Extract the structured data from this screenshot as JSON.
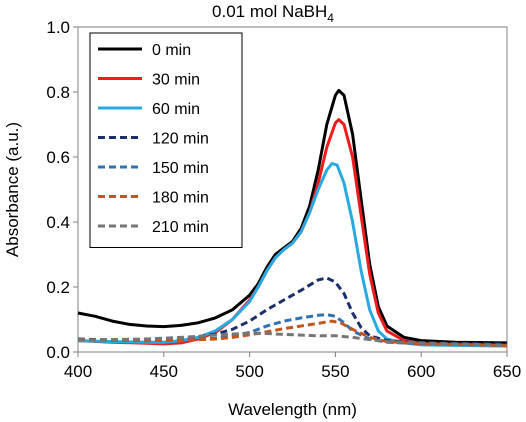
{
  "chart_data": {
    "type": "line",
    "title": "0.01 mol NaBH",
    "title_subscript": "4",
    "xlabel": "Wavelength (nm)",
    "ylabel": "Absorbance (a.u.)",
    "xlim": [
      400,
      650
    ],
    "ylim": [
      0,
      1.0
    ],
    "x_ticks": [
      "400",
      "450",
      "500",
      "550",
      "600",
      "650"
    ],
    "y_ticks": [
      "0.0",
      "0.2",
      "0.4",
      "0.6",
      "0.8",
      "1.0"
    ],
    "grid": false,
    "legend_position": "top-left",
    "series": [
      {
        "name": "0 min",
        "color": "#000000",
        "dash": "solid",
        "points": [
          [
            400,
            0.12
          ],
          [
            410,
            0.11
          ],
          [
            420,
            0.095
          ],
          [
            430,
            0.085
          ],
          [
            440,
            0.08
          ],
          [
            450,
            0.078
          ],
          [
            460,
            0.082
          ],
          [
            470,
            0.09
          ],
          [
            480,
            0.105
          ],
          [
            490,
            0.13
          ],
          [
            500,
            0.175
          ],
          [
            505,
            0.21
          ],
          [
            510,
            0.26
          ],
          [
            515,
            0.3
          ],
          [
            520,
            0.32
          ],
          [
            525,
            0.34
          ],
          [
            530,
            0.38
          ],
          [
            535,
            0.45
          ],
          [
            540,
            0.56
          ],
          [
            545,
            0.7
          ],
          [
            550,
            0.79
          ],
          [
            552,
            0.805
          ],
          [
            555,
            0.79
          ],
          [
            560,
            0.67
          ],
          [
            565,
            0.47
          ],
          [
            570,
            0.27
          ],
          [
            575,
            0.14
          ],
          [
            580,
            0.08
          ],
          [
            590,
            0.045
          ],
          [
            600,
            0.035
          ],
          [
            620,
            0.03
          ],
          [
            650,
            0.028
          ]
        ]
      },
      {
        "name": "30 min",
        "color": "#ee1c1c",
        "dash": "solid",
        "points": [
          [
            400,
            0.035
          ],
          [
            420,
            0.03
          ],
          [
            440,
            0.027
          ],
          [
            450,
            0.025
          ],
          [
            460,
            0.028
          ],
          [
            470,
            0.04
          ],
          [
            480,
            0.06
          ],
          [
            490,
            0.1
          ],
          [
            500,
            0.16
          ],
          [
            505,
            0.2
          ],
          [
            510,
            0.25
          ],
          [
            515,
            0.29
          ],
          [
            520,
            0.315
          ],
          [
            525,
            0.335
          ],
          [
            530,
            0.37
          ],
          [
            535,
            0.43
          ],
          [
            540,
            0.52
          ],
          [
            545,
            0.63
          ],
          [
            550,
            0.705
          ],
          [
            552,
            0.715
          ],
          [
            555,
            0.7
          ],
          [
            560,
            0.6
          ],
          [
            565,
            0.42
          ],
          [
            570,
            0.24
          ],
          [
            575,
            0.12
          ],
          [
            580,
            0.065
          ],
          [
            590,
            0.035
          ],
          [
            600,
            0.025
          ],
          [
            620,
            0.022
          ],
          [
            650,
            0.02
          ]
        ]
      },
      {
        "name": "60 min",
        "color": "#29a9e1",
        "dash": "solid",
        "points": [
          [
            400,
            0.035
          ],
          [
            420,
            0.032
          ],
          [
            440,
            0.03
          ],
          [
            450,
            0.03
          ],
          [
            460,
            0.035
          ],
          [
            470,
            0.045
          ],
          [
            480,
            0.065
          ],
          [
            490,
            0.1
          ],
          [
            500,
            0.155
          ],
          [
            505,
            0.2
          ],
          [
            510,
            0.25
          ],
          [
            515,
            0.29
          ],
          [
            520,
            0.315
          ],
          [
            525,
            0.335
          ],
          [
            530,
            0.37
          ],
          [
            535,
            0.43
          ],
          [
            540,
            0.5
          ],
          [
            545,
            0.56
          ],
          [
            548,
            0.58
          ],
          [
            551,
            0.575
          ],
          [
            555,
            0.52
          ],
          [
            560,
            0.4
          ],
          [
            565,
            0.25
          ],
          [
            570,
            0.13
          ],
          [
            575,
            0.065
          ],
          [
            580,
            0.04
          ],
          [
            590,
            0.028
          ],
          [
            600,
            0.022
          ],
          [
            650,
            0.018
          ]
        ]
      },
      {
        "name": "120 min",
        "color": "#1a2f6b",
        "dash": "dash",
        "points": [
          [
            400,
            0.04
          ],
          [
            420,
            0.037
          ],
          [
            440,
            0.035
          ],
          [
            460,
            0.04
          ],
          [
            480,
            0.055
          ],
          [
            490,
            0.07
          ],
          [
            500,
            0.095
          ],
          [
            510,
            0.13
          ],
          [
            520,
            0.16
          ],
          [
            530,
            0.19
          ],
          [
            540,
            0.222
          ],
          [
            545,
            0.228
          ],
          [
            550,
            0.215
          ],
          [
            555,
            0.18
          ],
          [
            560,
            0.12
          ],
          [
            565,
            0.075
          ],
          [
            570,
            0.05
          ],
          [
            580,
            0.035
          ],
          [
            600,
            0.028
          ],
          [
            650,
            0.025
          ]
        ]
      },
      {
        "name": "150 min",
        "color": "#2f72b4",
        "dash": "dash",
        "points": [
          [
            400,
            0.038
          ],
          [
            420,
            0.036
          ],
          [
            440,
            0.035
          ],
          [
            460,
            0.037
          ],
          [
            480,
            0.042
          ],
          [
            490,
            0.05
          ],
          [
            500,
            0.06
          ],
          [
            510,
            0.08
          ],
          [
            520,
            0.095
          ],
          [
            530,
            0.105
          ],
          [
            540,
            0.113
          ],
          [
            545,
            0.115
          ],
          [
            550,
            0.11
          ],
          [
            555,
            0.09
          ],
          [
            560,
            0.065
          ],
          [
            570,
            0.04
          ],
          [
            580,
            0.03
          ],
          [
            600,
            0.026
          ],
          [
            650,
            0.022
          ]
        ]
      },
      {
        "name": "180 min",
        "color": "#c4561c",
        "dash": "dash",
        "points": [
          [
            400,
            0.038
          ],
          [
            420,
            0.036
          ],
          [
            440,
            0.035
          ],
          [
            460,
            0.036
          ],
          [
            480,
            0.04
          ],
          [
            490,
            0.045
          ],
          [
            500,
            0.053
          ],
          [
            510,
            0.062
          ],
          [
            520,
            0.072
          ],
          [
            530,
            0.08
          ],
          [
            540,
            0.088
          ],
          [
            548,
            0.095
          ],
          [
            553,
            0.09
          ],
          [
            560,
            0.07
          ],
          [
            570,
            0.045
          ],
          [
            580,
            0.032
          ],
          [
            600,
            0.025
          ],
          [
            650,
            0.02
          ]
        ]
      },
      {
        "name": "210 min",
        "color": "#767676",
        "dash": "dash",
        "points": [
          [
            400,
            0.037
          ],
          [
            420,
            0.038
          ],
          [
            440,
            0.04
          ],
          [
            460,
            0.045
          ],
          [
            480,
            0.052
          ],
          [
            490,
            0.055
          ],
          [
            500,
            0.058
          ],
          [
            510,
            0.057
          ],
          [
            520,
            0.054
          ],
          [
            530,
            0.052
          ],
          [
            540,
            0.05
          ],
          [
            550,
            0.05
          ],
          [
            560,
            0.045
          ],
          [
            570,
            0.038
          ],
          [
            580,
            0.032
          ],
          [
            600,
            0.028
          ],
          [
            650,
            0.02
          ]
        ]
      }
    ]
  }
}
